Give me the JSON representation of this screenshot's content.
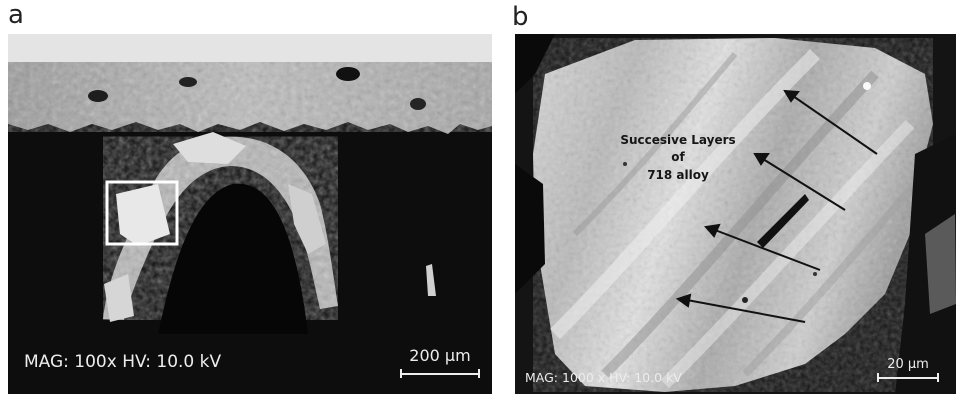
{
  "panel_a": {
    "label": "a",
    "meta": "MAG: 100x HV: 10.0 kV",
    "scale_label": "200 µm"
  },
  "panel_b": {
    "label": "b",
    "meta": "MAG: 1000 x HV: 10.0 kV",
    "scale_label": "20 µm",
    "annotation_line1": "Succesive Layers of",
    "annotation_line2": "718 alloy"
  }
}
